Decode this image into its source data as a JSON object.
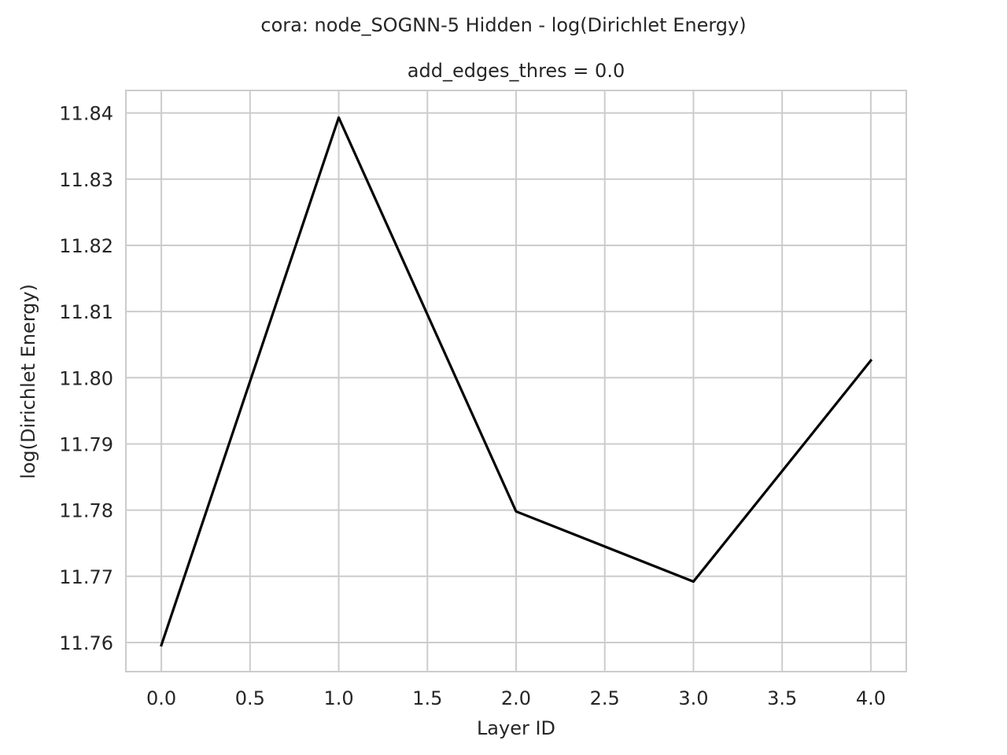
{
  "figure": {
    "suptitle": "cora: node_SOGNN-5 Hidden - log(Dirichlet Energy)"
  },
  "chart_data": {
    "type": "line",
    "title": "add_edges_thres = 0.0",
    "xlabel": "Layer ID",
    "ylabel": "log(Dirichlet Energy)",
    "xlim": [
      -0.2,
      4.2
    ],
    "ylim": [
      11.7556,
      11.8434
    ],
    "xticks": [
      0.0,
      0.5,
      1.0,
      1.5,
      2.0,
      2.5,
      3.0,
      3.5,
      4.0
    ],
    "xtick_labels": [
      "0.0",
      "0.5",
      "1.0",
      "1.5",
      "2.0",
      "2.5",
      "3.0",
      "3.5",
      "4.0"
    ],
    "yticks": [
      11.76,
      11.77,
      11.78,
      11.79,
      11.8,
      11.81,
      11.82,
      11.83,
      11.84
    ],
    "ytick_labels": [
      "11.76",
      "11.77",
      "11.78",
      "11.79",
      "11.80",
      "11.81",
      "11.82",
      "11.83",
      "11.84"
    ],
    "grid": true,
    "series": [
      {
        "x": [
          0,
          1,
          2,
          3,
          4
        ],
        "values": [
          11.7596,
          11.8393,
          11.7798,
          11.7692,
          11.8026
        ],
        "color": "#000000"
      }
    ]
  }
}
